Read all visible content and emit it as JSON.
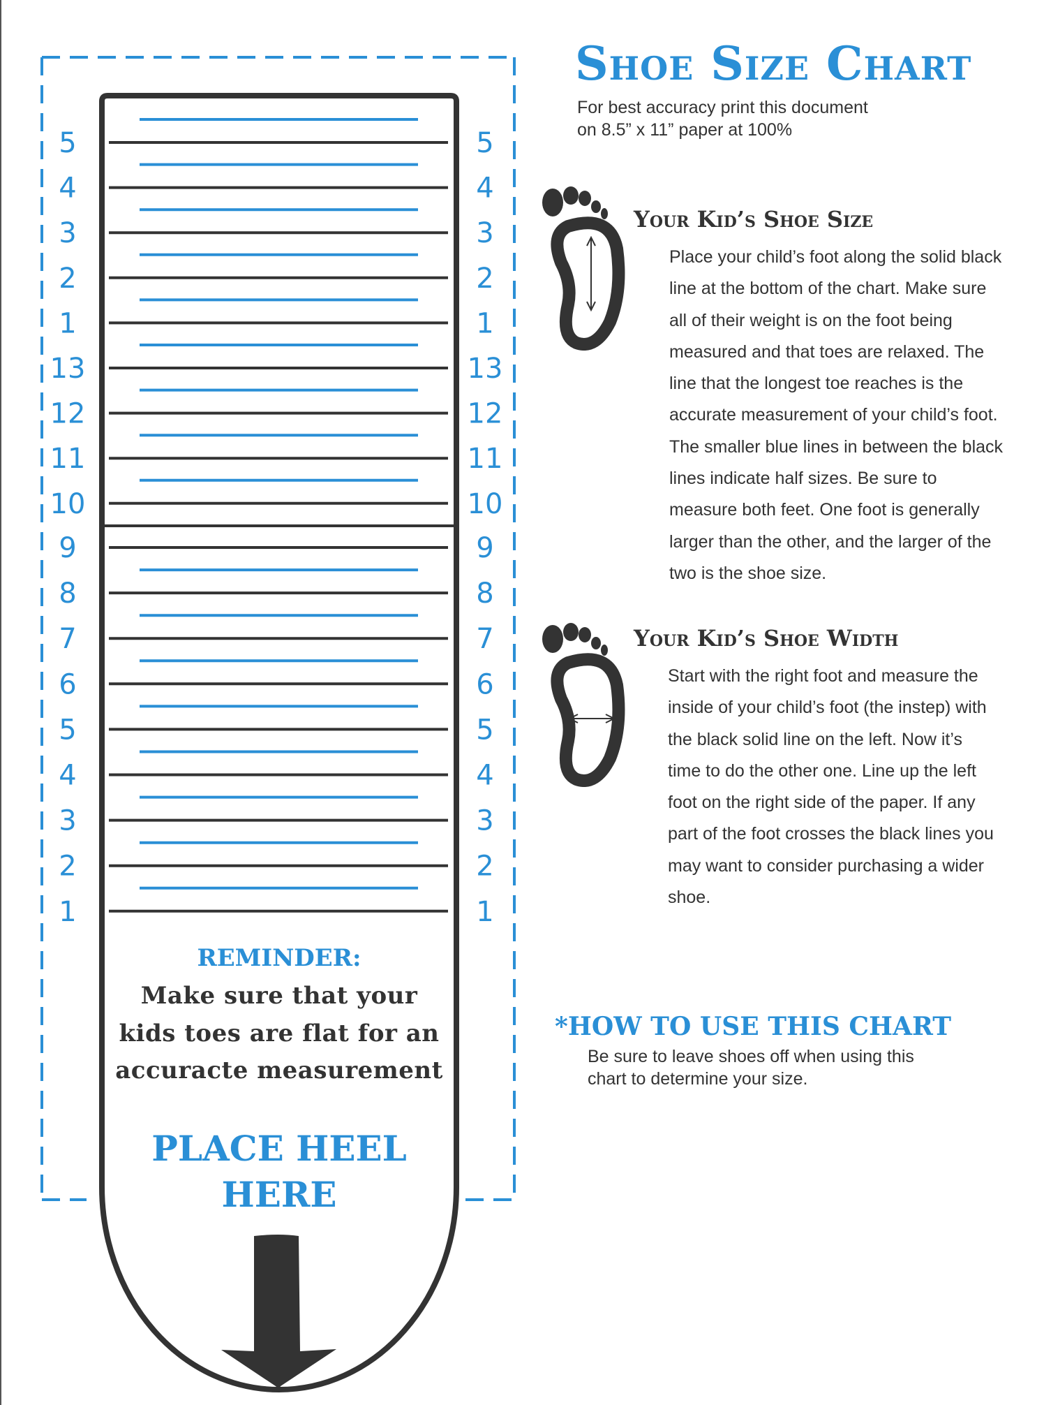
{
  "colors": {
    "accent": "#2a8fd6",
    "ink": "#333333"
  },
  "title": "Shoe Size Chart",
  "subtitle": [
    "For best accuracy print this document",
    "on 8.5” x 11” paper at 100%"
  ],
  "ruler": {
    "upper_sizes": [
      {
        "label": "5",
        "half_line": true
      },
      {
        "label": "4",
        "half_line": true
      },
      {
        "label": "3",
        "half_line": true
      },
      {
        "label": "2",
        "half_line": true
      },
      {
        "label": "1",
        "half_line": true
      },
      {
        "label": "13",
        "half_line": true
      },
      {
        "label": "12",
        "half_line": true
      },
      {
        "label": "11",
        "half_line": true
      },
      {
        "label": "10",
        "half_line": true
      }
    ],
    "lower_sizes": [
      {
        "label": "9",
        "half_line": false
      },
      {
        "label": "8",
        "half_line": true
      },
      {
        "label": "7",
        "half_line": true
      },
      {
        "label": "6",
        "half_line": true
      },
      {
        "label": "5",
        "half_line": true
      },
      {
        "label": "4",
        "half_line": true
      },
      {
        "label": "3",
        "half_line": true
      },
      {
        "label": "2",
        "half_line": true
      },
      {
        "label": "1",
        "half_line": true
      }
    ],
    "reminder_title": "REMINDER:",
    "reminder_lines": [
      "Make sure that your",
      "kids toes are flat for an",
      "accuracte measurement"
    ],
    "heel_lines": [
      "PLACE HEEL",
      "HERE"
    ],
    "arrow_icon": "down-arrow-icon"
  },
  "size_section": {
    "icon": "foot-length-icon",
    "heading": "Your Kid’s Shoe Size",
    "lines": [
      "Place your child’s foot along the solid black",
      "line at the bottom of the chart.  Make sure",
      "all of their weight is on the foot being",
      "measured and that toes are relaxed. The",
      "line that the longest toe reaches is the",
      "accurate measurement of your child’s foot.",
      "The smaller blue lines in between the black",
      "lines indicate half sizes.  Be sure to",
      "measure both feet.  One foot is generally",
      "larger than the other, and the larger of the",
      "two is the shoe size."
    ]
  },
  "width_section": {
    "icon": "foot-width-icon",
    "heading": "Your Kid’s Shoe Width",
    "lines": [
      "Start with the right foot and measure the",
      "inside of your child’s foot (the instep) with",
      "the black solid line on the left.  Now it’s",
      "time to do the other one.  Line up the left",
      "foot on the right side of the paper.  If any",
      "part of the foot crosses the black lines you",
      "may want to consider purchasing a wider",
      "shoe."
    ]
  },
  "how_to": {
    "heading": "*HOW TO USE THIS CHART",
    "lines": [
      "Be sure to leave shoes off when using this",
      "chart to determine your size."
    ]
  }
}
